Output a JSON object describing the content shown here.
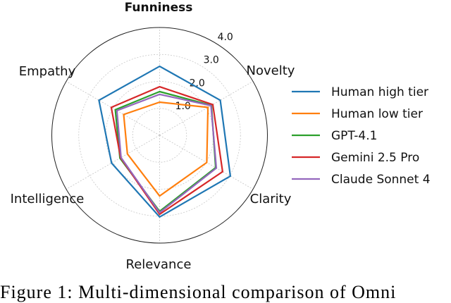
{
  "chart_data": {
    "type": "radar",
    "title": "Funniness",
    "axes": [
      "Funniness",
      "Novelty",
      "Clarity",
      "Relevance",
      "Intelligence",
      "Empathy"
    ],
    "rlim": [
      0,
      4
    ],
    "rticks": [
      "1.0",
      "2.0",
      "3.0",
      "4.0"
    ],
    "grid": true,
    "legend_position": "right",
    "series": [
      {
        "name": "Human high tier",
        "color": "#1f77b4",
        "values": [
          2.56,
          2.6,
          3.03,
          3.03,
          2.06,
          2.6
        ]
      },
      {
        "name": "Human low tier",
        "color": "#ff7f0e",
        "values": [
          1.23,
          2.07,
          2.02,
          2.25,
          1.38,
          1.54
        ]
      },
      {
        "name": "GPT-4.1",
        "color": "#2ca02c",
        "values": [
          1.62,
          2.22,
          2.4,
          2.82,
          1.7,
          1.9
        ]
      },
      {
        "name": "Gemini 2.5 Pro",
        "color": "#d62728",
        "values": [
          1.8,
          2.28,
          2.7,
          2.93,
          1.67,
          2.07
        ]
      },
      {
        "name": "Claude Sonnet 4",
        "color": "#9467bd",
        "values": [
          1.52,
          2.2,
          2.43,
          2.87,
          1.65,
          1.83
        ]
      }
    ]
  },
  "caption": "Figure 1: Multi-dimensional comparison of Omni"
}
